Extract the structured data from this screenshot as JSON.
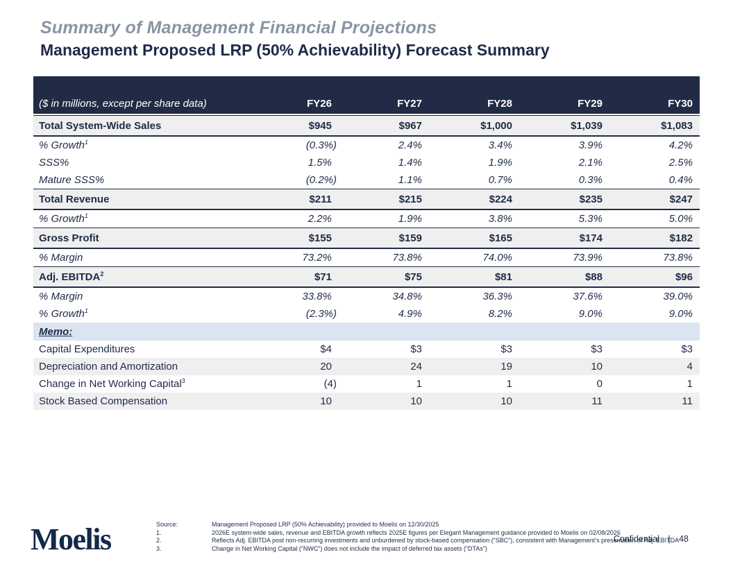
{
  "slide": {
    "subtitle": "Summary of Management Financial Projections",
    "title": "Management Proposed LRP (50% Achievability) Forecast Summary"
  },
  "table": {
    "caption": "($ in millions, except per share data)",
    "columns": [
      "FY26",
      "FY27",
      "FY28",
      "FY29",
      "FY30"
    ],
    "rows": [
      {
        "label": "Total System-Wide Sales",
        "sup": "",
        "style": "section",
        "values": [
          "$945",
          "$967",
          "$1,000",
          "$1,039",
          "$1,083"
        ]
      },
      {
        "label": "% Growth",
        "sup": "1",
        "style": "sub",
        "values": [
          "(0.3%)",
          "2.4%",
          "3.4%",
          "3.9%",
          "4.2%"
        ]
      },
      {
        "label": "SSS%",
        "sup": "",
        "style": "sub",
        "values": [
          "1.5%",
          "1.4%",
          "1.9%",
          "2.1%",
          "2.5%"
        ]
      },
      {
        "label": "Mature SSS%",
        "sup": "",
        "style": "sub",
        "values": [
          "(0.2%)",
          "1.1%",
          "0.7%",
          "0.3%",
          "0.4%"
        ]
      },
      {
        "label": "Total Revenue",
        "sup": "",
        "style": "section",
        "values": [
          "$211",
          "$215",
          "$224",
          "$235",
          "$247"
        ]
      },
      {
        "label": "% Growth",
        "sup": "1",
        "style": "sub",
        "values": [
          "2.2%",
          "1.9%",
          "3.8%",
          "5.3%",
          "5.0%"
        ]
      },
      {
        "label": "Gross Profit",
        "sup": "",
        "style": "section",
        "values": [
          "$155",
          "$159",
          "$165",
          "$174",
          "$182"
        ]
      },
      {
        "label": "% Margin",
        "sup": "",
        "style": "sub",
        "values": [
          "73.2%",
          "73.8%",
          "74.0%",
          "73.9%",
          "73.8%"
        ]
      },
      {
        "label": "Adj. EBITDA",
        "sup": "2",
        "style": "section",
        "values": [
          "$71",
          "$75",
          "$81",
          "$88",
          "$96"
        ]
      },
      {
        "label": "% Margin",
        "sup": "",
        "style": "sub",
        "values": [
          "33.8%",
          "34.8%",
          "36.3%",
          "37.6%",
          "39.0%"
        ]
      },
      {
        "label": "% Growth",
        "sup": "1",
        "style": "sub",
        "values": [
          "(2.3%)",
          "4.9%",
          "8.2%",
          "9.0%",
          "9.0%"
        ]
      },
      {
        "label": "Memo:",
        "sup": "",
        "style": "memo-header",
        "values": [
          "",
          "",
          "",
          "",
          ""
        ]
      },
      {
        "label": "Capital Expenditures",
        "sup": "",
        "style": "memo-odd",
        "values": [
          "$4",
          "$3",
          "$3",
          "$3",
          "$3"
        ]
      },
      {
        "label": "Depreciation and Amortization",
        "sup": "",
        "style": "memo-even",
        "values": [
          "20",
          "24",
          "19",
          "10",
          "4"
        ]
      },
      {
        "label": "Change in Net Working Capital",
        "sup": "3",
        "style": "memo-odd",
        "values": [
          "(4)",
          "1",
          "1",
          "0",
          "1"
        ]
      },
      {
        "label": "Stock Based Compensation",
        "sup": "",
        "style": "memo-even",
        "values": [
          "10",
          "10",
          "10",
          "11",
          "11"
        ]
      }
    ]
  },
  "footer": {
    "logo": "Moelis",
    "source_label": "Source:",
    "source_text": "Management Proposed LRP (50% Achievability) provided to Moelis on 12/30/2025",
    "footnotes": [
      {
        "num": "1.",
        "text": "2026E system-wide sales, revenue and EBITDA growth reflects 2025E figures per Elegant Management guidance provided to Moelis on 02/08/2026"
      },
      {
        "num": "2.",
        "text": "Reflects Adj. EBITDA post non-recurring investments and unburdened by stock-based compensation (“SBC”), consistent with Management’s presentation of Adj. EBITDA"
      },
      {
        "num": "3.",
        "text": "Change in Net Working Capital (“NWC”) does not include the impact of deferred tax assets (“DTAs”)"
      }
    ],
    "confidential": "Confidential",
    "page_number": "48"
  },
  "colors": {
    "header_navy": "#212b45",
    "text_navy": "#1e2a47",
    "subtitle_gray": "#8a94a2",
    "section_stripe": "#efefef",
    "memo_blue": "#dbe5f1",
    "logo_navy": "#13294b"
  }
}
